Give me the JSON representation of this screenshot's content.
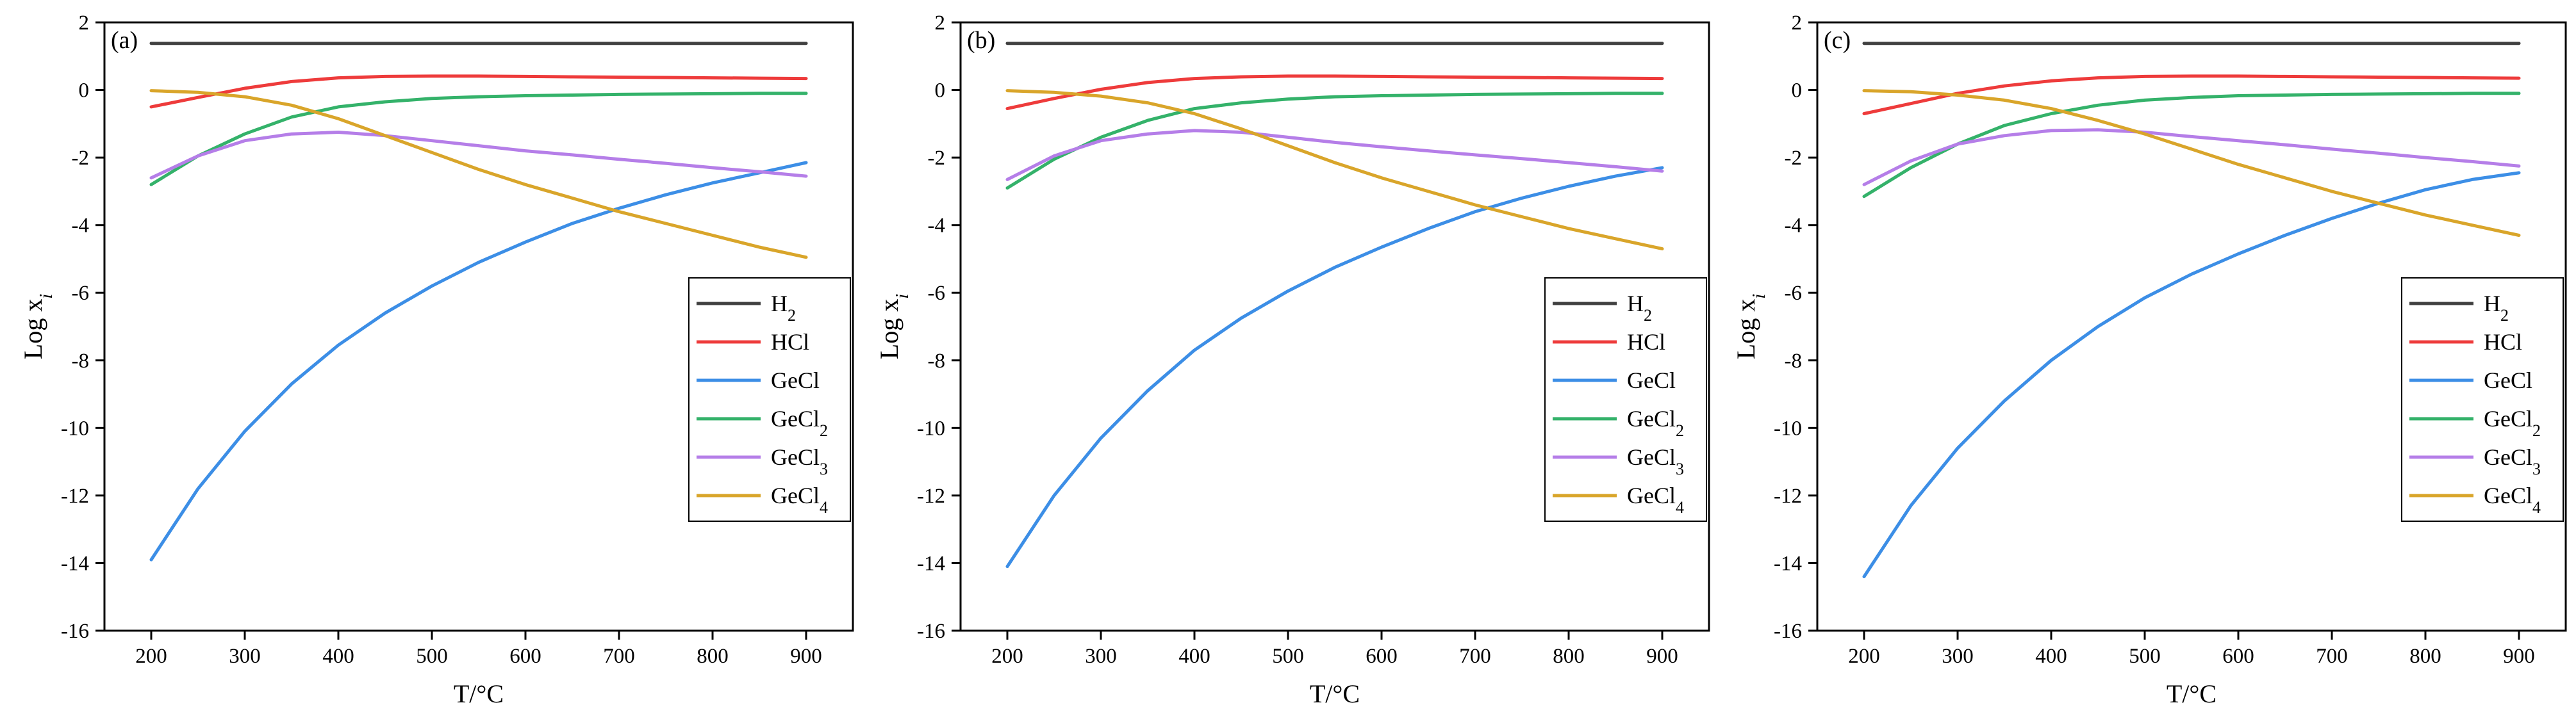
{
  "chart_data": [
    {
      "type": "line",
      "panel_label": "(a)",
      "xlabel": "T/°C",
      "ylabel": "Log x",
      "ylabel_sub": "i",
      "xlim": [
        150,
        950
      ],
      "ylim": [
        -16,
        2
      ],
      "xticks": [
        200,
        300,
        400,
        500,
        600,
        700,
        800,
        900
      ],
      "yticks": [
        -16,
        -14,
        -12,
        -10,
        -8,
        -6,
        -4,
        -2,
        0,
        2
      ],
      "legend_position": "center-right",
      "x": [
        200,
        250,
        300,
        350,
        400,
        450,
        500,
        550,
        600,
        650,
        700,
        750,
        800,
        850,
        900
      ],
      "series": [
        {
          "name": "H",
          "sub": "2",
          "color": "#404040",
          "values": [
            1.38,
            1.38,
            1.38,
            1.38,
            1.38,
            1.38,
            1.38,
            1.38,
            1.38,
            1.38,
            1.38,
            1.38,
            1.38,
            1.38,
            1.38
          ]
        },
        {
          "name": "HCl",
          "sub": "",
          "color": "#ee3b3b",
          "values": [
            -0.5,
            -0.22,
            0.05,
            0.25,
            0.36,
            0.4,
            0.41,
            0.41,
            0.4,
            0.39,
            0.38,
            0.37,
            0.36,
            0.35,
            0.34
          ]
        },
        {
          "name": "GeCl",
          "sub": "",
          "color": "#3c8ee6",
          "values": [
            -13.9,
            -11.8,
            -10.1,
            -8.7,
            -7.55,
            -6.6,
            -5.8,
            -5.1,
            -4.5,
            -3.95,
            -3.5,
            -3.1,
            -2.75,
            -2.45,
            -2.15
          ]
        },
        {
          "name": "GeCl",
          "sub": "2",
          "color": "#34b26a",
          "values": [
            -2.8,
            -1.95,
            -1.3,
            -0.8,
            -0.5,
            -0.35,
            -0.25,
            -0.2,
            -0.17,
            -0.15,
            -0.13,
            -0.12,
            -0.11,
            -0.1,
            -0.1
          ]
        },
        {
          "name": "GeCl",
          "sub": "3",
          "color": "#b57ee8",
          "values": [
            -2.6,
            -1.95,
            -1.5,
            -1.3,
            -1.25,
            -1.35,
            -1.5,
            -1.65,
            -1.8,
            -1.92,
            -2.05,
            -2.17,
            -2.3,
            -2.42,
            -2.55
          ]
        },
        {
          "name": "GeCl",
          "sub": "4",
          "color": "#d9a52a",
          "values": [
            -0.02,
            -0.07,
            -0.2,
            -0.45,
            -0.85,
            -1.35,
            -1.85,
            -2.35,
            -2.8,
            -3.2,
            -3.6,
            -3.95,
            -4.3,
            -4.65,
            -4.95
          ]
        }
      ]
    },
    {
      "type": "line",
      "panel_label": "(b)",
      "xlabel": "T/°C",
      "ylabel": "Log x",
      "ylabel_sub": "i",
      "xlim": [
        150,
        950
      ],
      "ylim": [
        -16,
        2
      ],
      "xticks": [
        200,
        300,
        400,
        500,
        600,
        700,
        800,
        900
      ],
      "yticks": [
        -16,
        -14,
        -12,
        -10,
        -8,
        -6,
        -4,
        -2,
        0,
        2
      ],
      "legend_position": "center-right",
      "x": [
        200,
        250,
        300,
        350,
        400,
        450,
        500,
        550,
        600,
        650,
        700,
        750,
        800,
        850,
        900
      ],
      "series": [
        {
          "name": "H",
          "sub": "2",
          "color": "#404040",
          "values": [
            1.38,
            1.38,
            1.38,
            1.38,
            1.38,
            1.38,
            1.38,
            1.38,
            1.38,
            1.38,
            1.38,
            1.38,
            1.38,
            1.38,
            1.38
          ]
        },
        {
          "name": "HCl",
          "sub": "",
          "color": "#ee3b3b",
          "values": [
            -0.55,
            -0.25,
            0.02,
            0.22,
            0.34,
            0.39,
            0.41,
            0.41,
            0.4,
            0.39,
            0.38,
            0.37,
            0.36,
            0.35,
            0.34
          ]
        },
        {
          "name": "GeCl",
          "sub": "",
          "color": "#3c8ee6",
          "values": [
            -14.1,
            -12.0,
            -10.3,
            -8.9,
            -7.7,
            -6.75,
            -5.95,
            -5.25,
            -4.65,
            -4.1,
            -3.6,
            -3.2,
            -2.85,
            -2.55,
            -2.3
          ]
        },
        {
          "name": "GeCl",
          "sub": "2",
          "color": "#34b26a",
          "values": [
            -2.9,
            -2.05,
            -1.4,
            -0.9,
            -0.55,
            -0.38,
            -0.27,
            -0.2,
            -0.17,
            -0.15,
            -0.13,
            -0.12,
            -0.11,
            -0.1,
            -0.1
          ]
        },
        {
          "name": "GeCl",
          "sub": "3",
          "color": "#b57ee8",
          "values": [
            -2.65,
            -1.95,
            -1.5,
            -1.3,
            -1.2,
            -1.25,
            -1.4,
            -1.55,
            -1.68,
            -1.8,
            -1.92,
            -2.03,
            -2.15,
            -2.27,
            -2.4
          ]
        },
        {
          "name": "GeCl",
          "sub": "4",
          "color": "#d9a52a",
          "values": [
            -0.02,
            -0.07,
            -0.18,
            -0.38,
            -0.7,
            -1.15,
            -1.65,
            -2.15,
            -2.6,
            -3.0,
            -3.4,
            -3.75,
            -4.1,
            -4.4,
            -4.7
          ]
        }
      ]
    },
    {
      "type": "line",
      "panel_label": "(c)",
      "xlabel": "T/°C",
      "ylabel": "Log x",
      "ylabel_sub": "i",
      "xlim": [
        150,
        950
      ],
      "ylim": [
        -16,
        2
      ],
      "xticks": [
        200,
        300,
        400,
        500,
        600,
        700,
        800,
        900
      ],
      "yticks": [
        -16,
        -14,
        -12,
        -10,
        -8,
        -6,
        -4,
        -2,
        0,
        2
      ],
      "legend_position": "center-right",
      "x": [
        200,
        250,
        300,
        350,
        400,
        450,
        500,
        550,
        600,
        650,
        700,
        750,
        800,
        850,
        900
      ],
      "series": [
        {
          "name": "H",
          "sub": "2",
          "color": "#404040",
          "values": [
            1.38,
            1.38,
            1.38,
            1.38,
            1.38,
            1.38,
            1.38,
            1.38,
            1.38,
            1.38,
            1.38,
            1.38,
            1.38,
            1.38,
            1.38
          ]
        },
        {
          "name": "HCl",
          "sub": "",
          "color": "#ee3b3b",
          "values": [
            -0.7,
            -0.4,
            -0.1,
            0.12,
            0.27,
            0.36,
            0.4,
            0.41,
            0.41,
            0.4,
            0.39,
            0.38,
            0.37,
            0.36,
            0.35
          ]
        },
        {
          "name": "GeCl",
          "sub": "",
          "color": "#3c8ee6",
          "values": [
            -14.4,
            -12.3,
            -10.6,
            -9.2,
            -8.0,
            -7.0,
            -6.15,
            -5.45,
            -4.85,
            -4.3,
            -3.8,
            -3.35,
            -2.95,
            -2.65,
            -2.45
          ]
        },
        {
          "name": "GeCl",
          "sub": "2",
          "color": "#34b26a",
          "values": [
            -3.15,
            -2.3,
            -1.6,
            -1.05,
            -0.7,
            -0.45,
            -0.3,
            -0.22,
            -0.17,
            -0.15,
            -0.13,
            -0.12,
            -0.11,
            -0.1,
            -0.1
          ]
        },
        {
          "name": "GeCl",
          "sub": "3",
          "color": "#b57ee8",
          "values": [
            -2.8,
            -2.1,
            -1.6,
            -1.35,
            -1.2,
            -1.18,
            -1.25,
            -1.38,
            -1.5,
            -1.62,
            -1.75,
            -1.87,
            -2.0,
            -2.12,
            -2.25
          ]
        },
        {
          "name": "GeCl",
          "sub": "4",
          "color": "#d9a52a",
          "values": [
            -0.02,
            -0.05,
            -0.15,
            -0.3,
            -0.55,
            -0.9,
            -1.3,
            -1.75,
            -2.2,
            -2.6,
            -3.0,
            -3.35,
            -3.7,
            -4.0,
            -4.3
          ]
        }
      ]
    }
  ]
}
